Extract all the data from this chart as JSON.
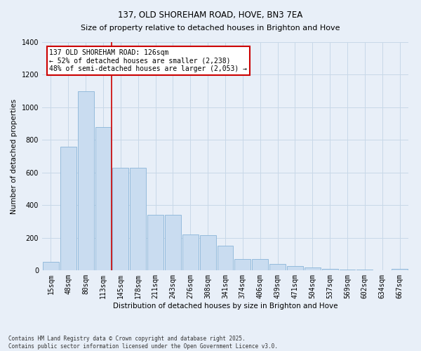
{
  "title": "137, OLD SHOREHAM ROAD, HOVE, BN3 7EA",
  "subtitle": "Size of property relative to detached houses in Brighton and Hove",
  "xlabel": "Distribution of detached houses by size in Brighton and Hove",
  "ylabel": "Number of detached properties",
  "categories": [
    "15sqm",
    "48sqm",
    "80sqm",
    "113sqm",
    "145sqm",
    "178sqm",
    "211sqm",
    "243sqm",
    "276sqm",
    "308sqm",
    "341sqm",
    "374sqm",
    "406sqm",
    "439sqm",
    "471sqm",
    "504sqm",
    "537sqm",
    "569sqm",
    "602sqm",
    "634sqm",
    "667sqm"
  ],
  "values": [
    50,
    760,
    1100,
    880,
    630,
    630,
    340,
    340,
    220,
    215,
    150,
    70,
    70,
    40,
    25,
    18,
    10,
    4,
    4,
    2,
    8
  ],
  "bar_color": "#c9dcf0",
  "bar_edge_color": "#8ab4d8",
  "vline_index": 3,
  "vline_color": "#cc0000",
  "annotation_text": "137 OLD SHOREHAM ROAD: 126sqm\n← 52% of detached houses are smaller (2,238)\n48% of semi-detached houses are larger (2,053) →",
  "annotation_box_edgecolor": "#cc0000",
  "annotation_box_fill": "#ffffff",
  "ylim": [
    0,
    1400
  ],
  "yticks": [
    0,
    200,
    400,
    600,
    800,
    1000,
    1200,
    1400
  ],
  "grid_color": "#c8d8e8",
  "footer": "Contains HM Land Registry data © Crown copyright and database right 2025.\nContains public sector information licensed under the Open Government Licence v3.0.",
  "bg_color": "#e8eff8",
  "title_fontsize": 8.5,
  "subtitle_fontsize": 8.0,
  "tick_fontsize": 7,
  "axis_label_fontsize": 7.5,
  "annotation_fontsize": 7,
  "footer_fontsize": 5.5
}
